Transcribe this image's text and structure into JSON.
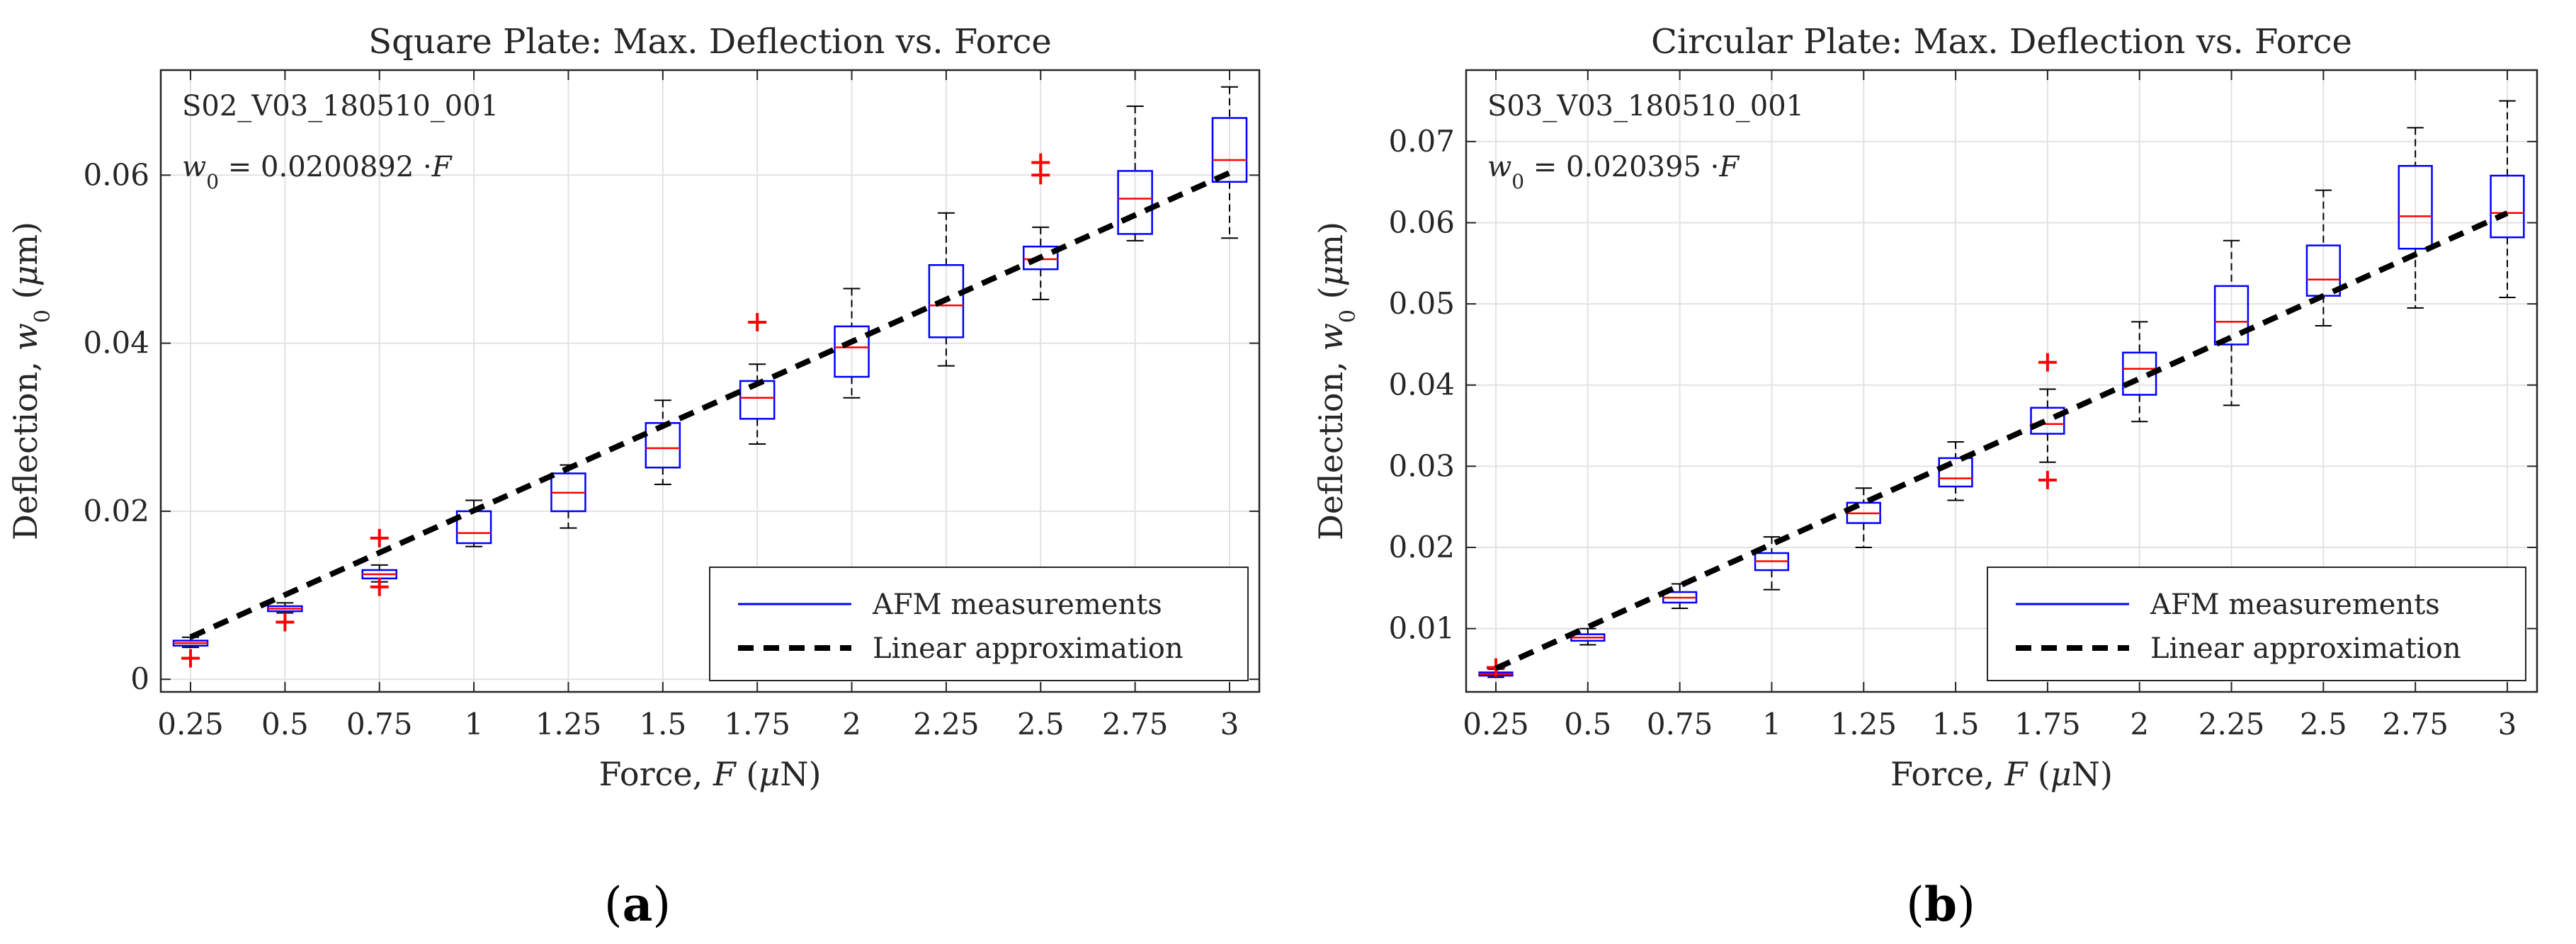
{
  "chart_data": [
    {
      "type": "boxplot",
      "title": "Square Plate:  Max. Deflection vs. Force",
      "xlabel_prefix": "Force, ",
      "xlabel_var": "F",
      "xlabel_unit_open": " (",
      "xlabel_mu": "μ",
      "xlabel_unit_rest": "N)",
      "ylabel_prefix": "Deflection, ",
      "ylabel_var": "w",
      "ylabel_sub": "0",
      "ylabel_unit_open": " (",
      "ylabel_mu": "μ",
      "ylabel_unit_rest": "m)",
      "sample_id": "S02_V03_180510_001",
      "fit_eq_var": "w",
      "fit_eq_sub": "0",
      "fit_eq_rest": " = 0.0200892 ·",
      "fit_eq_F": "F",
      "slope": 0.0200892,
      "caption": "(a)",
      "caption_letter": "a",
      "legend": [
        "AFM measurements",
        "Linear approximation"
      ],
      "ylim": [
        -0.0015,
        0.0725
      ],
      "yticks": [
        0,
        0.02,
        0.04,
        0.06
      ],
      "ytick_labels": [
        "0",
        "0.02",
        "0.04",
        "0.06"
      ],
      "categories": [
        "0.25",
        "0.5",
        "0.75",
        "1",
        "1.25",
        "1.5",
        "1.75",
        "2",
        "2.25",
        "2.5",
        "2.75",
        "3"
      ],
      "x": [
        0.25,
        0.5,
        0.75,
        1,
        1.25,
        1.5,
        1.75,
        2,
        2.25,
        2.5,
        2.75,
        3
      ],
      "boxes": [
        {
          "min": 0.0038,
          "q1": 0.004,
          "median": 0.0043,
          "q3": 0.0046,
          "max": 0.005,
          "outliers": [
            0.0025
          ]
        },
        {
          "min": 0.0079,
          "q1": 0.0081,
          "median": 0.0084,
          "q3": 0.0087,
          "max": 0.0091,
          "outliers": [
            0.0068
          ]
        },
        {
          "min": 0.0116,
          "q1": 0.012,
          "median": 0.0125,
          "q3": 0.013,
          "max": 0.0136,
          "outliers": [
            0.0168,
            0.011
          ]
        },
        {
          "min": 0.0158,
          "q1": 0.0162,
          "median": 0.0174,
          "q3": 0.02,
          "max": 0.0213,
          "outliers": []
        },
        {
          "min": 0.018,
          "q1": 0.02,
          "median": 0.0222,
          "q3": 0.0245,
          "max": 0.0255,
          "outliers": []
        },
        {
          "min": 0.0232,
          "q1": 0.0252,
          "median": 0.0275,
          "q3": 0.0305,
          "max": 0.0332,
          "outliers": []
        },
        {
          "min": 0.028,
          "q1": 0.031,
          "median": 0.0335,
          "q3": 0.0355,
          "max": 0.0375,
          "outliers": [
            0.0425
          ]
        },
        {
          "min": 0.0335,
          "q1": 0.036,
          "median": 0.0395,
          "q3": 0.042,
          "max": 0.0465,
          "outliers": []
        },
        {
          "min": 0.0373,
          "q1": 0.0407,
          "median": 0.0445,
          "q3": 0.0493,
          "max": 0.0555,
          "outliers": []
        },
        {
          "min": 0.0452,
          "q1": 0.0488,
          "median": 0.05,
          "q3": 0.0515,
          "max": 0.0538,
          "outliers": [
            0.06,
            0.0615
          ]
        },
        {
          "min": 0.0522,
          "q1": 0.053,
          "median": 0.0572,
          "q3": 0.0605,
          "max": 0.0682,
          "outliers": []
        },
        {
          "min": 0.0525,
          "q1": 0.0592,
          "median": 0.0618,
          "q3": 0.0668,
          "max": 0.0705,
          "outliers": []
        }
      ]
    },
    {
      "type": "boxplot",
      "title": "Circular Plate:  Max. Deflection vs. Force",
      "xlabel_prefix": "Force, ",
      "xlabel_var": "F",
      "xlabel_unit_open": " (",
      "xlabel_mu": "μ",
      "xlabel_unit_rest": "N)",
      "ylabel_prefix": "Deflection, ",
      "ylabel_var": "w",
      "ylabel_sub": "0",
      "ylabel_unit_open": " (",
      "ylabel_mu": "μ",
      "ylabel_unit_rest": "m)",
      "sample_id": "S03_V03_180510_001",
      "fit_eq_var": "w",
      "fit_eq_sub": "0",
      "fit_eq_rest": " = 0.020395 ·",
      "fit_eq_F": "F",
      "slope": 0.020395,
      "caption": "(b)",
      "caption_letter": "b",
      "legend": [
        "AFM measurements",
        "Linear approximation"
      ],
      "ylim": [
        0.0022,
        0.0788
      ],
      "yticks": [
        0.01,
        0.02,
        0.03,
        0.04,
        0.05,
        0.06,
        0.07
      ],
      "ytick_labels": [
        "0.01",
        "0.02",
        "0.03",
        "0.04",
        "0.05",
        "0.06",
        "0.07"
      ],
      "categories": [
        "0.25",
        "0.5",
        "0.75",
        "1",
        "1.25",
        "1.5",
        "1.75",
        "2",
        "2.25",
        "2.5",
        "2.75",
        "3"
      ],
      "x": [
        0.25,
        0.5,
        0.75,
        1,
        1.25,
        1.5,
        1.75,
        2,
        2.25,
        2.5,
        2.75,
        3
      ],
      "boxes": [
        {
          "min": 0.004,
          "q1": 0.0042,
          "median": 0.0044,
          "q3": 0.0046,
          "max": 0.005,
          "outliers": [
            0.0052
          ]
        },
        {
          "min": 0.008,
          "q1": 0.0085,
          "median": 0.0089,
          "q3": 0.0093,
          "max": 0.01,
          "outliers": []
        },
        {
          "min": 0.0125,
          "q1": 0.0132,
          "median": 0.0138,
          "q3": 0.0145,
          "max": 0.0155,
          "outliers": []
        },
        {
          "min": 0.0148,
          "q1": 0.0172,
          "median": 0.0183,
          "q3": 0.0193,
          "max": 0.0213,
          "outliers": []
        },
        {
          "min": 0.02,
          "q1": 0.023,
          "median": 0.0242,
          "q3": 0.0255,
          "max": 0.0273,
          "outliers": []
        },
        {
          "min": 0.0258,
          "q1": 0.0275,
          "median": 0.0285,
          "q3": 0.031,
          "max": 0.033,
          "outliers": []
        },
        {
          "min": 0.0305,
          "q1": 0.034,
          "median": 0.0352,
          "q3": 0.0372,
          "max": 0.0395,
          "outliers": [
            0.0428,
            0.0283
          ]
        },
        {
          "min": 0.0355,
          "q1": 0.0388,
          "median": 0.042,
          "q3": 0.044,
          "max": 0.0478,
          "outliers": []
        },
        {
          "min": 0.0375,
          "q1": 0.045,
          "median": 0.0478,
          "q3": 0.0522,
          "max": 0.0578,
          "outliers": []
        },
        {
          "min": 0.0473,
          "q1": 0.051,
          "median": 0.053,
          "q3": 0.0572,
          "max": 0.064,
          "outliers": []
        },
        {
          "min": 0.0495,
          "q1": 0.0568,
          "median": 0.0608,
          "q3": 0.067,
          "max": 0.0717,
          "outliers": []
        },
        {
          "min": 0.0508,
          "q1": 0.0582,
          "median": 0.0612,
          "q3": 0.0658,
          "max": 0.075,
          "outliers": []
        }
      ]
    }
  ]
}
